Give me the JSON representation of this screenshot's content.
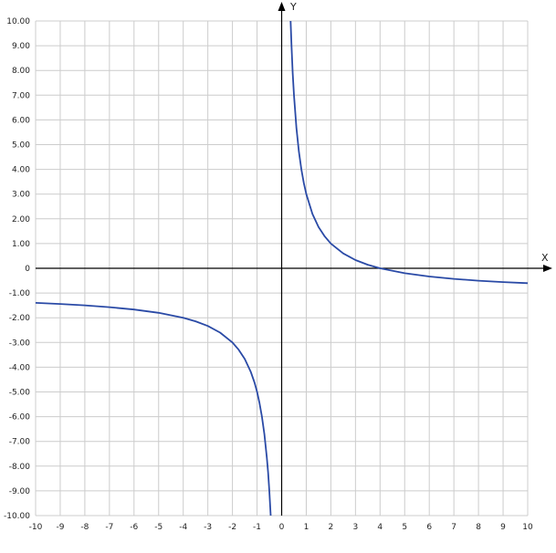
{
  "chart_data": {
    "type": "line",
    "xlabel": "X",
    "ylabel": "Y",
    "xlim": [
      -10,
      10
    ],
    "ylim": [
      -10,
      10
    ],
    "grid": true,
    "x_tick_labels": [
      "-10",
      "-9",
      "-8",
      "-7",
      "-6",
      "-5",
      "-4",
      "-3",
      "-2",
      "-1",
      "0",
      "1",
      "2",
      "3",
      "4",
      "5",
      "6",
      "7",
      "8",
      "9",
      "10"
    ],
    "y_tick_labels": [
      "10.00",
      "9.00",
      "8.00",
      "7.00",
      "6.00",
      "5.00",
      "4.00",
      "3.00",
      "2.00",
      "1.00",
      "0",
      "-1.00",
      "-2.00",
      "-3.00",
      "-4.00",
      "-5.00",
      "-6.00",
      "-7.00",
      "-8.00",
      "-9.00",
      "-10.00"
    ],
    "curve_color": "#2a4aa6",
    "grid_color": "#cccccc",
    "series": [
      {
        "points": [
          [
            -10,
            -1.4
          ],
          [
            -9,
            -1.444
          ],
          [
            -8,
            -1.5
          ],
          [
            -7,
            -1.571
          ],
          [
            -6,
            -1.667
          ],
          [
            -5,
            -1.8
          ],
          [
            -4,
            -2
          ],
          [
            -3.5,
            -2.143
          ],
          [
            -3,
            -2.333
          ],
          [
            -2.5,
            -2.6
          ],
          [
            -2,
            -3
          ],
          [
            -1.75,
            -3.286
          ],
          [
            -1.5,
            -3.667
          ],
          [
            -1.25,
            -4.2
          ],
          [
            -1.1,
            -4.636
          ],
          [
            -1,
            -5
          ],
          [
            -0.9,
            -5.444
          ],
          [
            -0.8,
            -6
          ],
          [
            -0.7,
            -6.714
          ],
          [
            -0.6,
            -7.667
          ],
          [
            -0.55,
            -8.273
          ],
          [
            -0.5,
            -9
          ],
          [
            -0.444,
            -10
          ]
        ]
      },
      {
        "points": [
          [
            0.364,
            10
          ],
          [
            0.4,
            9
          ],
          [
            0.45,
            7.889
          ],
          [
            0.5,
            7
          ],
          [
            0.6,
            5.667
          ],
          [
            0.7,
            4.714
          ],
          [
            0.8,
            4
          ],
          [
            0.9,
            3.444
          ],
          [
            1,
            3
          ],
          [
            1.25,
            2.2
          ],
          [
            1.5,
            1.667
          ],
          [
            1.75,
            1.286
          ],
          [
            2,
            1
          ],
          [
            2.5,
            0.6
          ],
          [
            3,
            0.333
          ],
          [
            3.5,
            0.143
          ],
          [
            4,
            0
          ],
          [
            5,
            -0.2
          ],
          [
            6,
            -0.333
          ],
          [
            7,
            -0.429
          ],
          [
            8,
            -0.5
          ],
          [
            9,
            -0.556
          ],
          [
            10,
            -0.6
          ]
        ]
      }
    ]
  }
}
